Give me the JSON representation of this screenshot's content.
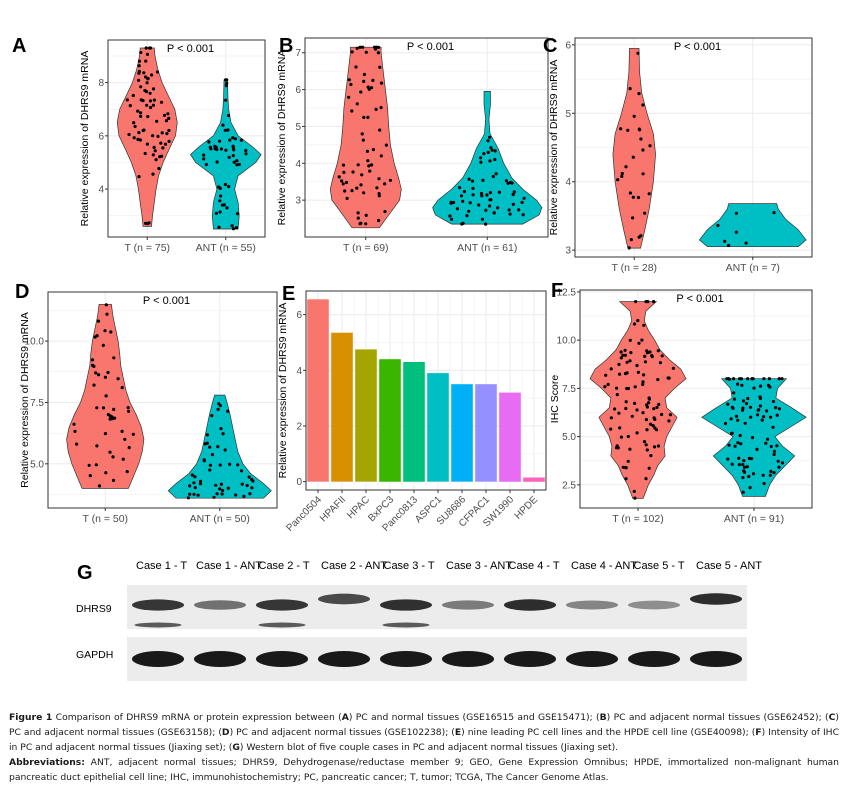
{
  "figure": {
    "common_ylabel": "Relative expression of DHRS9 mRNA",
    "colors": {
      "tumor": "#F8766D",
      "ant": "#00BFC4",
      "grid": "#EBEBEB",
      "axis": "#333333",
      "point": "#000000"
    }
  },
  "chart_data": [
    {
      "panel": "A",
      "type": "violin",
      "title": "",
      "annotation": "P < 0.001",
      "ylabel": "Relative expression of DHRS9 mRNA",
      "xlabel": "",
      "categories": [
        "T (n = 75)",
        "ANT (n = 55)"
      ],
      "yticks": [
        4,
        6,
        8
      ],
      "ytick_labels": [
        "4",
        "6",
        "8"
      ],
      "ylim": [
        2.2,
        9.6
      ],
      "series": [
        {
          "name": "T",
          "n": 75,
          "min": 2.6,
          "max": 9.3,
          "color": "#F8766D",
          "density": [
            [
              2.6,
              0.12
            ],
            [
              3.0,
              0.15
            ],
            [
              3.5,
              0.2
            ],
            [
              4.0,
              0.25
            ],
            [
              4.5,
              0.32
            ],
            [
              5.0,
              0.45
            ],
            [
              5.5,
              0.62
            ],
            [
              6.0,
              0.8
            ],
            [
              6.5,
              0.85
            ],
            [
              7.0,
              0.78
            ],
            [
              7.5,
              0.6
            ],
            [
              8.0,
              0.42
            ],
            [
              8.5,
              0.3
            ],
            [
              9.0,
              0.22
            ],
            [
              9.3,
              0.2
            ]
          ]
        },
        {
          "name": "ANT",
          "n": 55,
          "min": 2.5,
          "max": 8.1,
          "color": "#00BFC4",
          "density": [
            [
              2.5,
              0.35
            ],
            [
              3.0,
              0.38
            ],
            [
              3.5,
              0.35
            ],
            [
              4.0,
              0.25
            ],
            [
              4.5,
              0.35
            ],
            [
              5.0,
              0.85
            ],
            [
              5.3,
              1.0
            ],
            [
              5.6,
              0.75
            ],
            [
              6.0,
              0.35
            ],
            [
              6.5,
              0.15
            ],
            [
              7.0,
              0.08
            ],
            [
              7.5,
              0.06
            ],
            [
              8.1,
              0.05
            ]
          ]
        }
      ]
    },
    {
      "panel": "B",
      "type": "violin",
      "title": "",
      "annotation": "P < 0.001",
      "ylabel": "Relative expression of DHRS9 mRNA",
      "xlabel": "",
      "categories": [
        "T (n = 69)",
        "ANT (n = 61)"
      ],
      "yticks": [
        3,
        4,
        5,
        6,
        7
      ],
      "ytick_labels": [
        "3",
        "4",
        "5",
        "6",
        "7"
      ],
      "ylim": [
        2.0,
        7.4
      ],
      "series": [
        {
          "name": "T",
          "n": 69,
          "min": 2.25,
          "max": 7.15,
          "color": "#F8766D",
          "density": [
            [
              2.25,
              0.25
            ],
            [
              2.6,
              0.42
            ],
            [
              3.0,
              0.62
            ],
            [
              3.3,
              0.65
            ],
            [
              3.6,
              0.6
            ],
            [
              4.0,
              0.52
            ],
            [
              4.5,
              0.45
            ],
            [
              5.0,
              0.42
            ],
            [
              5.5,
              0.4
            ],
            [
              6.0,
              0.36
            ],
            [
              6.5,
              0.32
            ],
            [
              7.0,
              0.28
            ],
            [
              7.15,
              0.28
            ]
          ]
        },
        {
          "name": "ANT",
          "n": 61,
          "min": 2.35,
          "max": 5.95,
          "color": "#00BFC4",
          "density": [
            [
              2.35,
              0.65
            ],
            [
              2.6,
              0.95
            ],
            [
              2.8,
              1.0
            ],
            [
              3.0,
              0.9
            ],
            [
              3.3,
              0.65
            ],
            [
              3.6,
              0.45
            ],
            [
              4.0,
              0.3
            ],
            [
              4.4,
              0.2
            ],
            [
              4.8,
              0.05
            ],
            [
              5.2,
              0.03
            ],
            [
              5.6,
              0.06
            ],
            [
              5.95,
              0.06
            ]
          ]
        }
      ]
    },
    {
      "panel": "C",
      "type": "violin",
      "title": "",
      "annotation": "P < 0.001",
      "ylabel": "Relative expression of DHRS9 mRNA",
      "xlabel": "",
      "categories": [
        "T (n = 28)",
        "ANT (n = 7)"
      ],
      "yticks": [
        3,
        4,
        5,
        6
      ],
      "ytick_labels": [
        "3",
        "4",
        "5",
        "6"
      ],
      "ylim": [
        2.9,
        6.1
      ],
      "series": [
        {
          "name": "T",
          "n": 28,
          "min": 3.03,
          "max": 5.95,
          "color": "#F8766D",
          "density": [
            [
              3.03,
              0.12
            ],
            [
              3.3,
              0.2
            ],
            [
              3.6,
              0.28
            ],
            [
              4.0,
              0.36
            ],
            [
              4.4,
              0.4
            ],
            [
              4.7,
              0.36
            ],
            [
              5.0,
              0.24
            ],
            [
              5.3,
              0.14
            ],
            [
              5.6,
              0.1
            ],
            [
              5.95,
              0.09
            ]
          ]
        },
        {
          "name": "ANT",
          "n": 7,
          "min": 3.05,
          "max": 3.68,
          "color": "#00BFC4",
          "density": [
            [
              3.05,
              0.85
            ],
            [
              3.15,
              1.0
            ],
            [
              3.3,
              0.85
            ],
            [
              3.45,
              0.62
            ],
            [
              3.6,
              0.48
            ],
            [
              3.68,
              0.45
            ]
          ]
        }
      ]
    },
    {
      "panel": "D",
      "type": "violin",
      "title": "",
      "annotation": "P < 0.001",
      "ylabel": "Relative expression of DHRS9 mRNA",
      "xlabel": "",
      "categories": [
        "T (n = 50)",
        "ANT (n = 50)"
      ],
      "yticks": [
        5.0,
        7.5,
        10.0
      ],
      "ytick_labels": [
        "5.0",
        "7.5",
        "10.0"
      ],
      "ylim": [
        3.2,
        12.0
      ],
      "series": [
        {
          "name": "T",
          "n": 50,
          "min": 4.0,
          "max": 11.5,
          "color": "#F8766D",
          "density": [
            [
              4.0,
              0.45
            ],
            [
              4.5,
              0.55
            ],
            [
              5.0,
              0.65
            ],
            [
              5.5,
              0.72
            ],
            [
              6.0,
              0.75
            ],
            [
              6.5,
              0.7
            ],
            [
              7.0,
              0.6
            ],
            [
              7.5,
              0.48
            ],
            [
              8.0,
              0.4
            ],
            [
              8.5,
              0.35
            ],
            [
              9.0,
              0.3
            ],
            [
              9.5,
              0.28
            ],
            [
              10.0,
              0.25
            ],
            [
              10.5,
              0.2
            ],
            [
              11.0,
              0.15
            ],
            [
              11.5,
              0.12
            ]
          ]
        },
        {
          "name": "ANT",
          "n": 50,
          "min": 3.6,
          "max": 7.8,
          "color": "#00BFC4",
          "density": [
            [
              3.6,
              0.85
            ],
            [
              3.9,
              1.0
            ],
            [
              4.2,
              0.85
            ],
            [
              4.6,
              0.6
            ],
            [
              5.0,
              0.45
            ],
            [
              5.5,
              0.35
            ],
            [
              6.0,
              0.3
            ],
            [
              6.5,
              0.25
            ],
            [
              7.0,
              0.2
            ],
            [
              7.5,
              0.14
            ],
            [
              7.8,
              0.1
            ]
          ]
        }
      ]
    },
    {
      "panel": "E",
      "type": "bar",
      "title": "",
      "ylabel": "Relative expression of DHRS9 mRNA",
      "xlabel": "",
      "categories": [
        "Panc0504",
        "HPAFII",
        "HPAC",
        "BxPC3",
        "Panc0813",
        "ASPC1",
        "SU8686",
        "CFPAC1",
        "SW1990",
        "HPDE"
      ],
      "values": [
        6.55,
        5.35,
        4.75,
        4.4,
        4.3,
        3.9,
        3.5,
        3.5,
        3.2,
        0.15
      ],
      "colors": [
        "#F8766D",
        "#D89000",
        "#A3A500",
        "#39B600",
        "#00BF7D",
        "#00BFC4",
        "#00B0F6",
        "#9590FF",
        "#E76BF3",
        "#FF62BC"
      ],
      "yticks": [
        0,
        2,
        4,
        6
      ],
      "ytick_labels": [
        "0",
        "2",
        "4",
        "6"
      ],
      "ylim": [
        -0.3,
        6.85
      ]
    },
    {
      "panel": "F",
      "type": "violin",
      "title": "",
      "annotation": "P < 0.001",
      "ylabel": "IHC Score",
      "xlabel": "",
      "categories": [
        "T (n = 102)",
        "ANT (n = 91)"
      ],
      "yticks": [
        2.5,
        5.0,
        7.5,
        10.0,
        12.5
      ],
      "ytick_labels": [
        "2.5",
        "5.0",
        "7.5",
        "10.0",
        "12.5"
      ],
      "ylim": [
        1.3,
        12.6
      ],
      "series": [
        {
          "name": "T",
          "n": 102,
          "min": 1.8,
          "max": 12.0,
          "color": "#F8766D",
          "density": [
            [
              1.8,
              0.1
            ],
            [
              2.5,
              0.2
            ],
            [
              3.0,
              0.3
            ],
            [
              3.5,
              0.38
            ],
            [
              4.0,
              0.52
            ],
            [
              4.5,
              0.5
            ],
            [
              5.0,
              0.55
            ],
            [
              5.5,
              0.65
            ],
            [
              6.0,
              0.75
            ],
            [
              6.5,
              0.55
            ],
            [
              7.0,
              0.52
            ],
            [
              7.5,
              0.7
            ],
            [
              8.0,
              0.92
            ],
            [
              8.5,
              0.82
            ],
            [
              9.0,
              0.6
            ],
            [
              9.5,
              0.42
            ],
            [
              10.0,
              0.32
            ],
            [
              10.5,
              0.2
            ],
            [
              11.0,
              0.12
            ],
            [
              11.5,
              0.15
            ],
            [
              12.0,
              0.35
            ]
          ]
        },
        {
          "name": "ANT",
          "n": 91,
          "min": 1.9,
          "max": 8.0,
          "color": "#00BFC4",
          "density": [
            [
              1.9,
              0.22
            ],
            [
              2.5,
              0.3
            ],
            [
              3.0,
              0.42
            ],
            [
              3.5,
              0.6
            ],
            [
              4.0,
              0.78
            ],
            [
              4.5,
              0.55
            ],
            [
              5.0,
              0.4
            ],
            [
              5.5,
              0.7
            ],
            [
              6.0,
              1.0
            ],
            [
              6.5,
              0.72
            ],
            [
              7.0,
              0.42
            ],
            [
              7.5,
              0.45
            ],
            [
              8.0,
              0.62
            ]
          ]
        }
      ]
    }
  ],
  "western_blot": {
    "panel": "G",
    "lanes": [
      "Case 1 - T",
      "Case 1 -  ANT",
      "Case 2 - T",
      "Case 2 -  ANT",
      "Case 3 - T",
      "Case 3 - ANT",
      "Case 4 - T",
      "Case 4 -  ANT",
      "Case 5 - T",
      "Case 5 - ANT"
    ],
    "rows": [
      {
        "label": "DHRS9",
        "intensity": [
          0.85,
          0.55,
          0.85,
          0.75,
          0.88,
          0.5,
          0.9,
          0.45,
          0.4,
          0.9
        ]
      },
      {
        "label": "GAPDH",
        "intensity": [
          1,
          1,
          1,
          1,
          1,
          1,
          1,
          1,
          1,
          1
        ]
      }
    ]
  },
  "caption": {
    "figure_label": "Figure 1",
    "text_parts": [
      {
        "t": " Comparison of DHRS9 mRNA or protein expression between ("
      },
      {
        "b": "A"
      },
      {
        "t": ") PC and normal tissues (GSE16515 and GSE15471); ("
      },
      {
        "b": "B"
      },
      {
        "t": ") PC and adjacent normal tissues (GSE62452); ("
      },
      {
        "b": "C"
      },
      {
        "t": ") PC and adjacent normal tissues (GSE63158); ("
      },
      {
        "b": "D"
      },
      {
        "t": ") PC and adjacent normal tissues (GSE102238); ("
      },
      {
        "b": "E"
      },
      {
        "t": ") nine leading PC cell lines and the HPDE cell line (GSE40098); ("
      },
      {
        "b": "F"
      },
      {
        "t": ") Intensity of IHC in PC and adjacent normal tissues (Jiaxing set); ("
      },
      {
        "b": "G"
      },
      {
        "t": ") Western blot of five couple cases in PC and adjacent normal tissues (Jiaxing set)."
      }
    ],
    "abbreviations_label": "Abbreviations:",
    "abbreviations_text": " ANT, adjacent normal tissues; DHRS9, Dehydrogenase/reductase member 9; GEO, Gene Expression Omnibus; HPDE, immortalized non-malignant human pancreatic duct epithelial cell line; IHC, immunohistochemistry; PC, pancreatic cancer; T, tumor; TCGA, The Cancer Genome Atlas."
  }
}
